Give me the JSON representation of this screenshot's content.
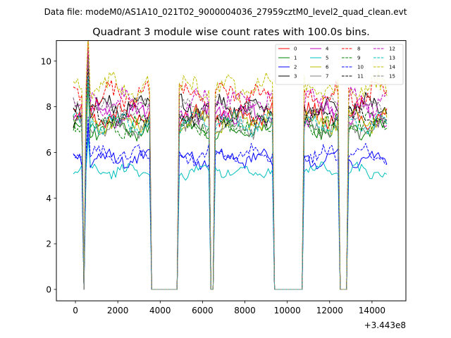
{
  "chart_data": {
    "type": "line",
    "supertitle": "Data file: modeM0/AS1A10_021T02_9000004036_27959cztM0_level2_quad_clean.evt",
    "title": "Quadrant 3 module wise count rates with 100.0s bins.",
    "xlabel": "",
    "ylabel": "",
    "x_offset_label": "+3.443e8",
    "xlim": [
      -900,
      15600
    ],
    "ylim": [
      -0.5,
      10.9
    ],
    "xticks": [
      0,
      2000,
      4000,
      6000,
      8000,
      10000,
      12000,
      14000
    ],
    "xtick_labels": [
      "0",
      "2000",
      "4000",
      "6000",
      "8000",
      "10000",
      "12000",
      "14000"
    ],
    "yticks": [
      0,
      2,
      4,
      6,
      8,
      10
    ],
    "ytick_labels": [
      "0",
      "2",
      "4",
      "6",
      "8",
      "10"
    ],
    "legend_position": "top-right",
    "time_bins": {
      "start": -100,
      "step": 100,
      "count": 149,
      "active_segments": [
        [
          -100,
          300
        ],
        [
          500,
          3500
        ],
        [
          4900,
          6300
        ],
        [
          6600,
          9300
        ],
        [
          10800,
          12400
        ],
        [
          12900,
          14800
        ]
      ],
      "zero_segments": [
        [
          400,
          400
        ],
        [
          3600,
          4800
        ],
        [
          9400,
          10700
        ],
        [
          12500,
          12800
        ]
      ],
      "spike_at": 600
    },
    "series": [
      {
        "name": "0",
        "color": "#ff0000",
        "dash": "solid",
        "level": 7.6
      },
      {
        "name": "1",
        "color": "#008000",
        "dash": "solid",
        "level": 7.0
      },
      {
        "name": "2",
        "color": "#0000ff",
        "dash": "solid",
        "level": 5.7
      },
      {
        "name": "3",
        "color": "#000000",
        "dash": "solid",
        "level": 8.0
      },
      {
        "name": "4",
        "color": "#bf00bf",
        "dash": "solid",
        "level": 7.7
      },
      {
        "name": "5",
        "color": "#00bfbf",
        "dash": "solid",
        "level": 5.2
      },
      {
        "name": "6",
        "color": "#bfbf00",
        "dash": "solid",
        "level": 7.4
      },
      {
        "name": "7",
        "color": "#808080",
        "dash": "solid",
        "level": 7.1
      },
      {
        "name": "8",
        "color": "#ff0000",
        "dash": "dashed",
        "level": 8.5
      },
      {
        "name": "9",
        "color": "#008000",
        "dash": "dashed",
        "level": 7.2
      },
      {
        "name": "10",
        "color": "#0000ff",
        "dash": "dashed",
        "level": 5.9
      },
      {
        "name": "11",
        "color": "#000000",
        "dash": "dashed",
        "level": 7.6
      },
      {
        "name": "12",
        "color": "#bf00bf",
        "dash": "dashed",
        "level": 8.2
      },
      {
        "name": "13",
        "color": "#00bfbf",
        "dash": "dashed",
        "level": 7.3
      },
      {
        "name": "14",
        "color": "#bfbf00",
        "dash": "dashed",
        "level": 8.8
      },
      {
        "name": "15",
        "color": "#808080",
        "dash": "dashed",
        "level": 7.9
      }
    ]
  }
}
